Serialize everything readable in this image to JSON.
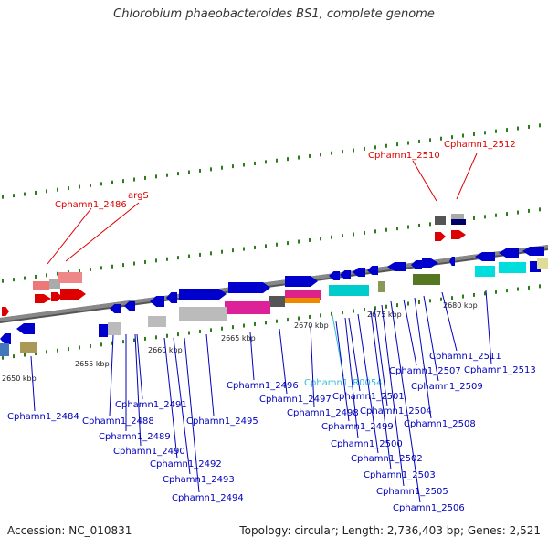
{
  "title": "Chlorobium phaeobacteroides BS1, complete genome",
  "footer": {
    "accession": "Accession: NC_010831",
    "summary": "Topology: circular; Length: 2,736,403 bp; Genes: 2,521"
  },
  "axis_ticks": [
    "2650 kbp",
    "2655 kbp",
    "2660 kbp",
    "2665 kbp",
    "2670 kbp",
    "2675 kbp",
    "2680 kbp"
  ],
  "colors": {
    "rna_gene": "#dd0000",
    "protein_gene": "#0000bb",
    "ncrna_gene": "#33bbdd",
    "backbone": "#888888",
    "tick": "#2e7d1c"
  },
  "labels": {
    "red": [
      "Cphamn1_2486",
      "argS",
      "Cphamn1_2510",
      "Cphamn1_2512"
    ],
    "cyan": [
      "Cphamn1_R0054"
    ],
    "blue": [
      "Cphamn1_2484",
      "Cphamn1_2488",
      "Cphamn1_2489",
      "Cphamn1_2490",
      "Cphamn1_2491",
      "Cphamn1_2492",
      "Cphamn1_2493",
      "Cphamn1_2494",
      "Cphamn1_2495",
      "Cphamn1_2496",
      "Cphamn1_2497",
      "Cphamn1_2498",
      "Cphamn1_2499",
      "Cphamn1_2500",
      "Cphamn1_2501",
      "Cphamn1_2502",
      "Cphamn1_2503",
      "Cphamn1_2504",
      "Cphamn1_2505",
      "Cphamn1_2506",
      "Cphamn1_2507",
      "Cphamn1_2508",
      "Cphamn1_2509",
      "Cphamn1_2511",
      "Cphamn1_2513"
    ]
  }
}
